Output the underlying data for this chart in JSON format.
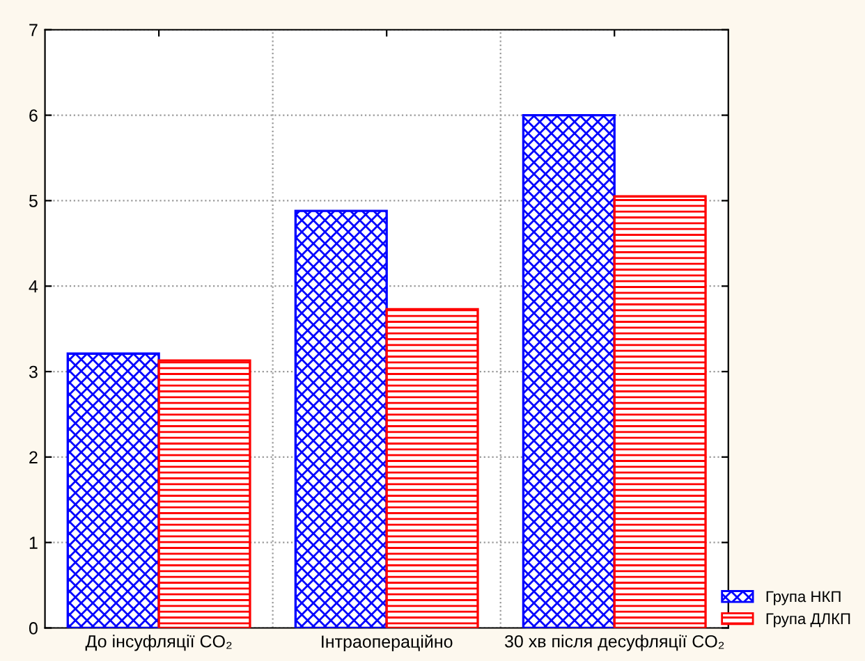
{
  "chart_data": {
    "type": "bar",
    "categories": [
      "До інсуфляції CO₂",
      "Інтраопераційно",
      "30 хв після десуфляції CO₂"
    ],
    "series": [
      {
        "name": "Група НКП",
        "color": "#0000ff",
        "values": [
          3.21,
          4.88,
          6.0
        ]
      },
      {
        "name": "Група ДЛКП",
        "color": "#ff0000",
        "values": [
          3.13,
          3.73,
          5.05
        ]
      }
    ],
    "ylim": [
      0,
      7
    ],
    "yticks": [
      0,
      1,
      2,
      3,
      4,
      5,
      6,
      7
    ],
    "grid": true,
    "legend": "bottom right"
  }
}
